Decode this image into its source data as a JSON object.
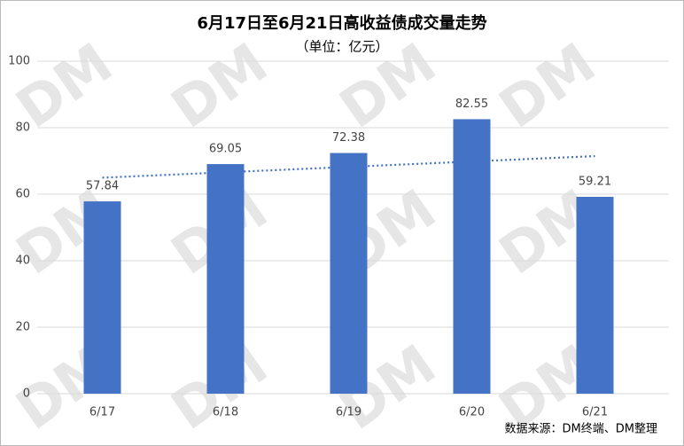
{
  "chart_data": {
    "type": "bar",
    "title": "6月17日至6月21日高收益债成交量走势",
    "subtitle": "（单位：亿元）",
    "categories": [
      "6/17",
      "6/18",
      "6/19",
      "6/20",
      "6/21"
    ],
    "values": [
      57.84,
      69.05,
      72.38,
      82.55,
      59.21
    ],
    "color": "#4472c4",
    "ylim": [
      0,
      100
    ],
    "yticks": [
      0,
      20,
      40,
      60,
      80,
      100
    ],
    "grid": true,
    "trendline": "linear",
    "trendline_color": "#4472c4",
    "source": "数据来源：DM终端、DM整理",
    "watermark": "DM"
  }
}
